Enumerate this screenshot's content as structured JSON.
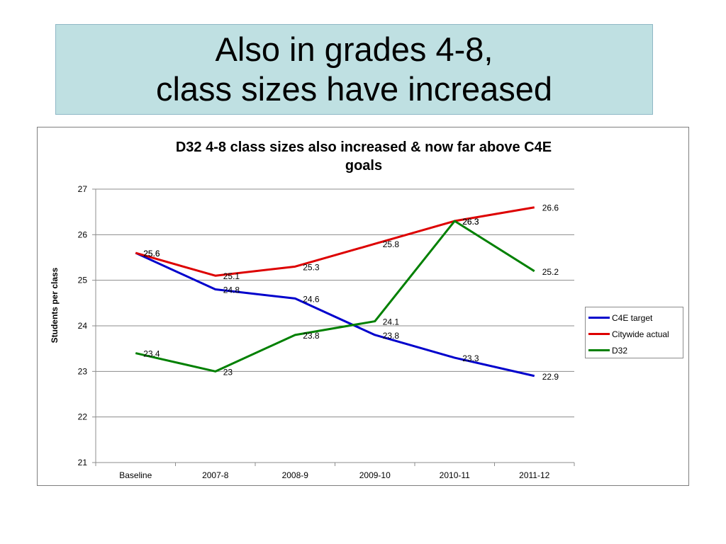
{
  "slide": {
    "title_line1": "Also in grades 4-8,",
    "title_line2": "class sizes have increased"
  },
  "chart_data": {
    "type": "line",
    "title": "D32 4-8 class sizes also increased  & now far above C4E goals",
    "title_line1": "D32 4-8 class sizes also increased  & now far above C4E",
    "title_line2": "goals",
    "xlabel": "",
    "ylabel": "Students per class",
    "ylim": [
      21,
      27
    ],
    "yticks": [
      21,
      22,
      23,
      24,
      25,
      26,
      27
    ],
    "grid": true,
    "legend_position": "right",
    "categories": [
      "Baseline",
      "2007-8",
      "2008-9",
      "2009-10",
      "2010-11",
      "2011-12"
    ],
    "series": [
      {
        "name": "C4E target",
        "color": "#0000cc",
        "values": [
          25.6,
          24.8,
          24.6,
          23.8,
          23.3,
          22.9
        ],
        "labels": [
          "25.6",
          "24.8",
          "24.6",
          "23.8",
          "23.3",
          "22.9"
        ]
      },
      {
        "name": "Citywide actual",
        "color": "#dd0000",
        "values": [
          25.6,
          25.1,
          25.3,
          25.8,
          26.3,
          26.6
        ],
        "labels": [
          "25.6",
          "25.1",
          "25.3",
          "25.8",
          "26.3",
          "26.6"
        ]
      },
      {
        "name": "D32",
        "color": "#008000",
        "values": [
          23.4,
          23.0,
          23.8,
          24.1,
          26.3,
          25.2
        ],
        "labels": [
          "23.4",
          "23",
          "23.8",
          "24.1",
          "26.3",
          "25.2"
        ]
      }
    ]
  }
}
